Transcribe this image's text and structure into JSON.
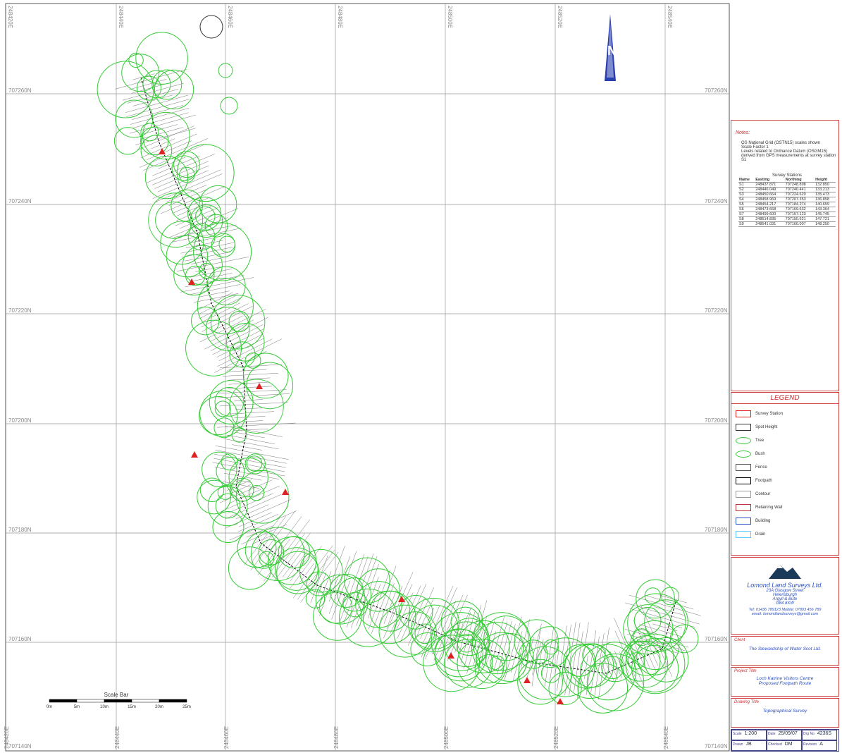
{
  "grid": {
    "north_labels": [
      "707260N",
      "707240N",
      "707220N",
      "707200N",
      "707180N",
      "707160N",
      "707140N"
    ],
    "east_labels": [
      "248420E",
      "248440E",
      "248460E",
      "248480E",
      "248500E",
      "248520E",
      "248540E"
    ]
  },
  "scale_bar": {
    "title": "Scale Bar",
    "labels": [
      "0m",
      "5m",
      "10m",
      "15m",
      "20m",
      "25m"
    ]
  },
  "notes": {
    "heading": "Notes:",
    "lines": [
      "OS National Grid (OSTN15) scales shown",
      "Scale Factor 1",
      "Levels related to Ordnance Datum (OSGM15)",
      "derived from GPS measurements at survey station S1"
    ]
  },
  "stations": {
    "title": "Survey Stations",
    "header": [
      "Name",
      "Easting",
      "Northing",
      "Height"
    ],
    "rows": [
      [
        "S1",
        "248437.871",
        "707248.898",
        "132.850"
      ],
      [
        "S2",
        "248446.049",
        "707240.441",
        "133.213"
      ],
      [
        "S3",
        "248450.664",
        "707224.620",
        "135.473"
      ],
      [
        "S4",
        "248458.969",
        "707207.353",
        "136.858"
      ],
      [
        "S5",
        "248454.217",
        "707184.274",
        "140.659"
      ],
      [
        "S6",
        "248473.668",
        "707169.632",
        "143.364"
      ],
      [
        "S7",
        "248499.600",
        "707157.123",
        "145.745"
      ],
      [
        "S8",
        "248514.835",
        "707150.621",
        "147.721"
      ],
      [
        "S9",
        "248541.031",
        "707160.007",
        "148.250"
      ]
    ]
  },
  "legend": {
    "title": "LEGEND",
    "items": [
      "Survey Station",
      "Spot Height",
      "Tree",
      "Bush",
      "Fence",
      "Footpath",
      "Contour",
      "Retaining Wall",
      "Building",
      "Drain"
    ]
  },
  "company": {
    "name": "Lomond Land Surveys Ltd.",
    "address": [
      "23A Glasgow Street",
      "Helensburgh",
      "Argyll & Bute",
      "G84 8XW"
    ],
    "phone": "Tel: 01436 789123   Mobile: 07803 456 789",
    "email": "email: lomondlandsurveys@gmail.com"
  },
  "client": {
    "heading": "Client",
    "text": "The Stewardship of Water Scot Ltd."
  },
  "project": {
    "heading": "Project Title",
    "lines": [
      "Loch Katrine Visitors Centre",
      "Proposed Footpath Route"
    ]
  },
  "drawing": {
    "heading": "Drawing Title",
    "text": "Topographical Survey"
  },
  "info": [
    {
      "label": "Scale",
      "value": "1:200"
    },
    {
      "label": "Date",
      "value": "25/09/07"
    },
    {
      "label": "Drg No",
      "value": "4236S"
    },
    {
      "label": "Drawn",
      "value": "JB"
    },
    {
      "label": "Checked",
      "value": "DM"
    },
    {
      "label": "Revision",
      "value": "A"
    }
  ]
}
